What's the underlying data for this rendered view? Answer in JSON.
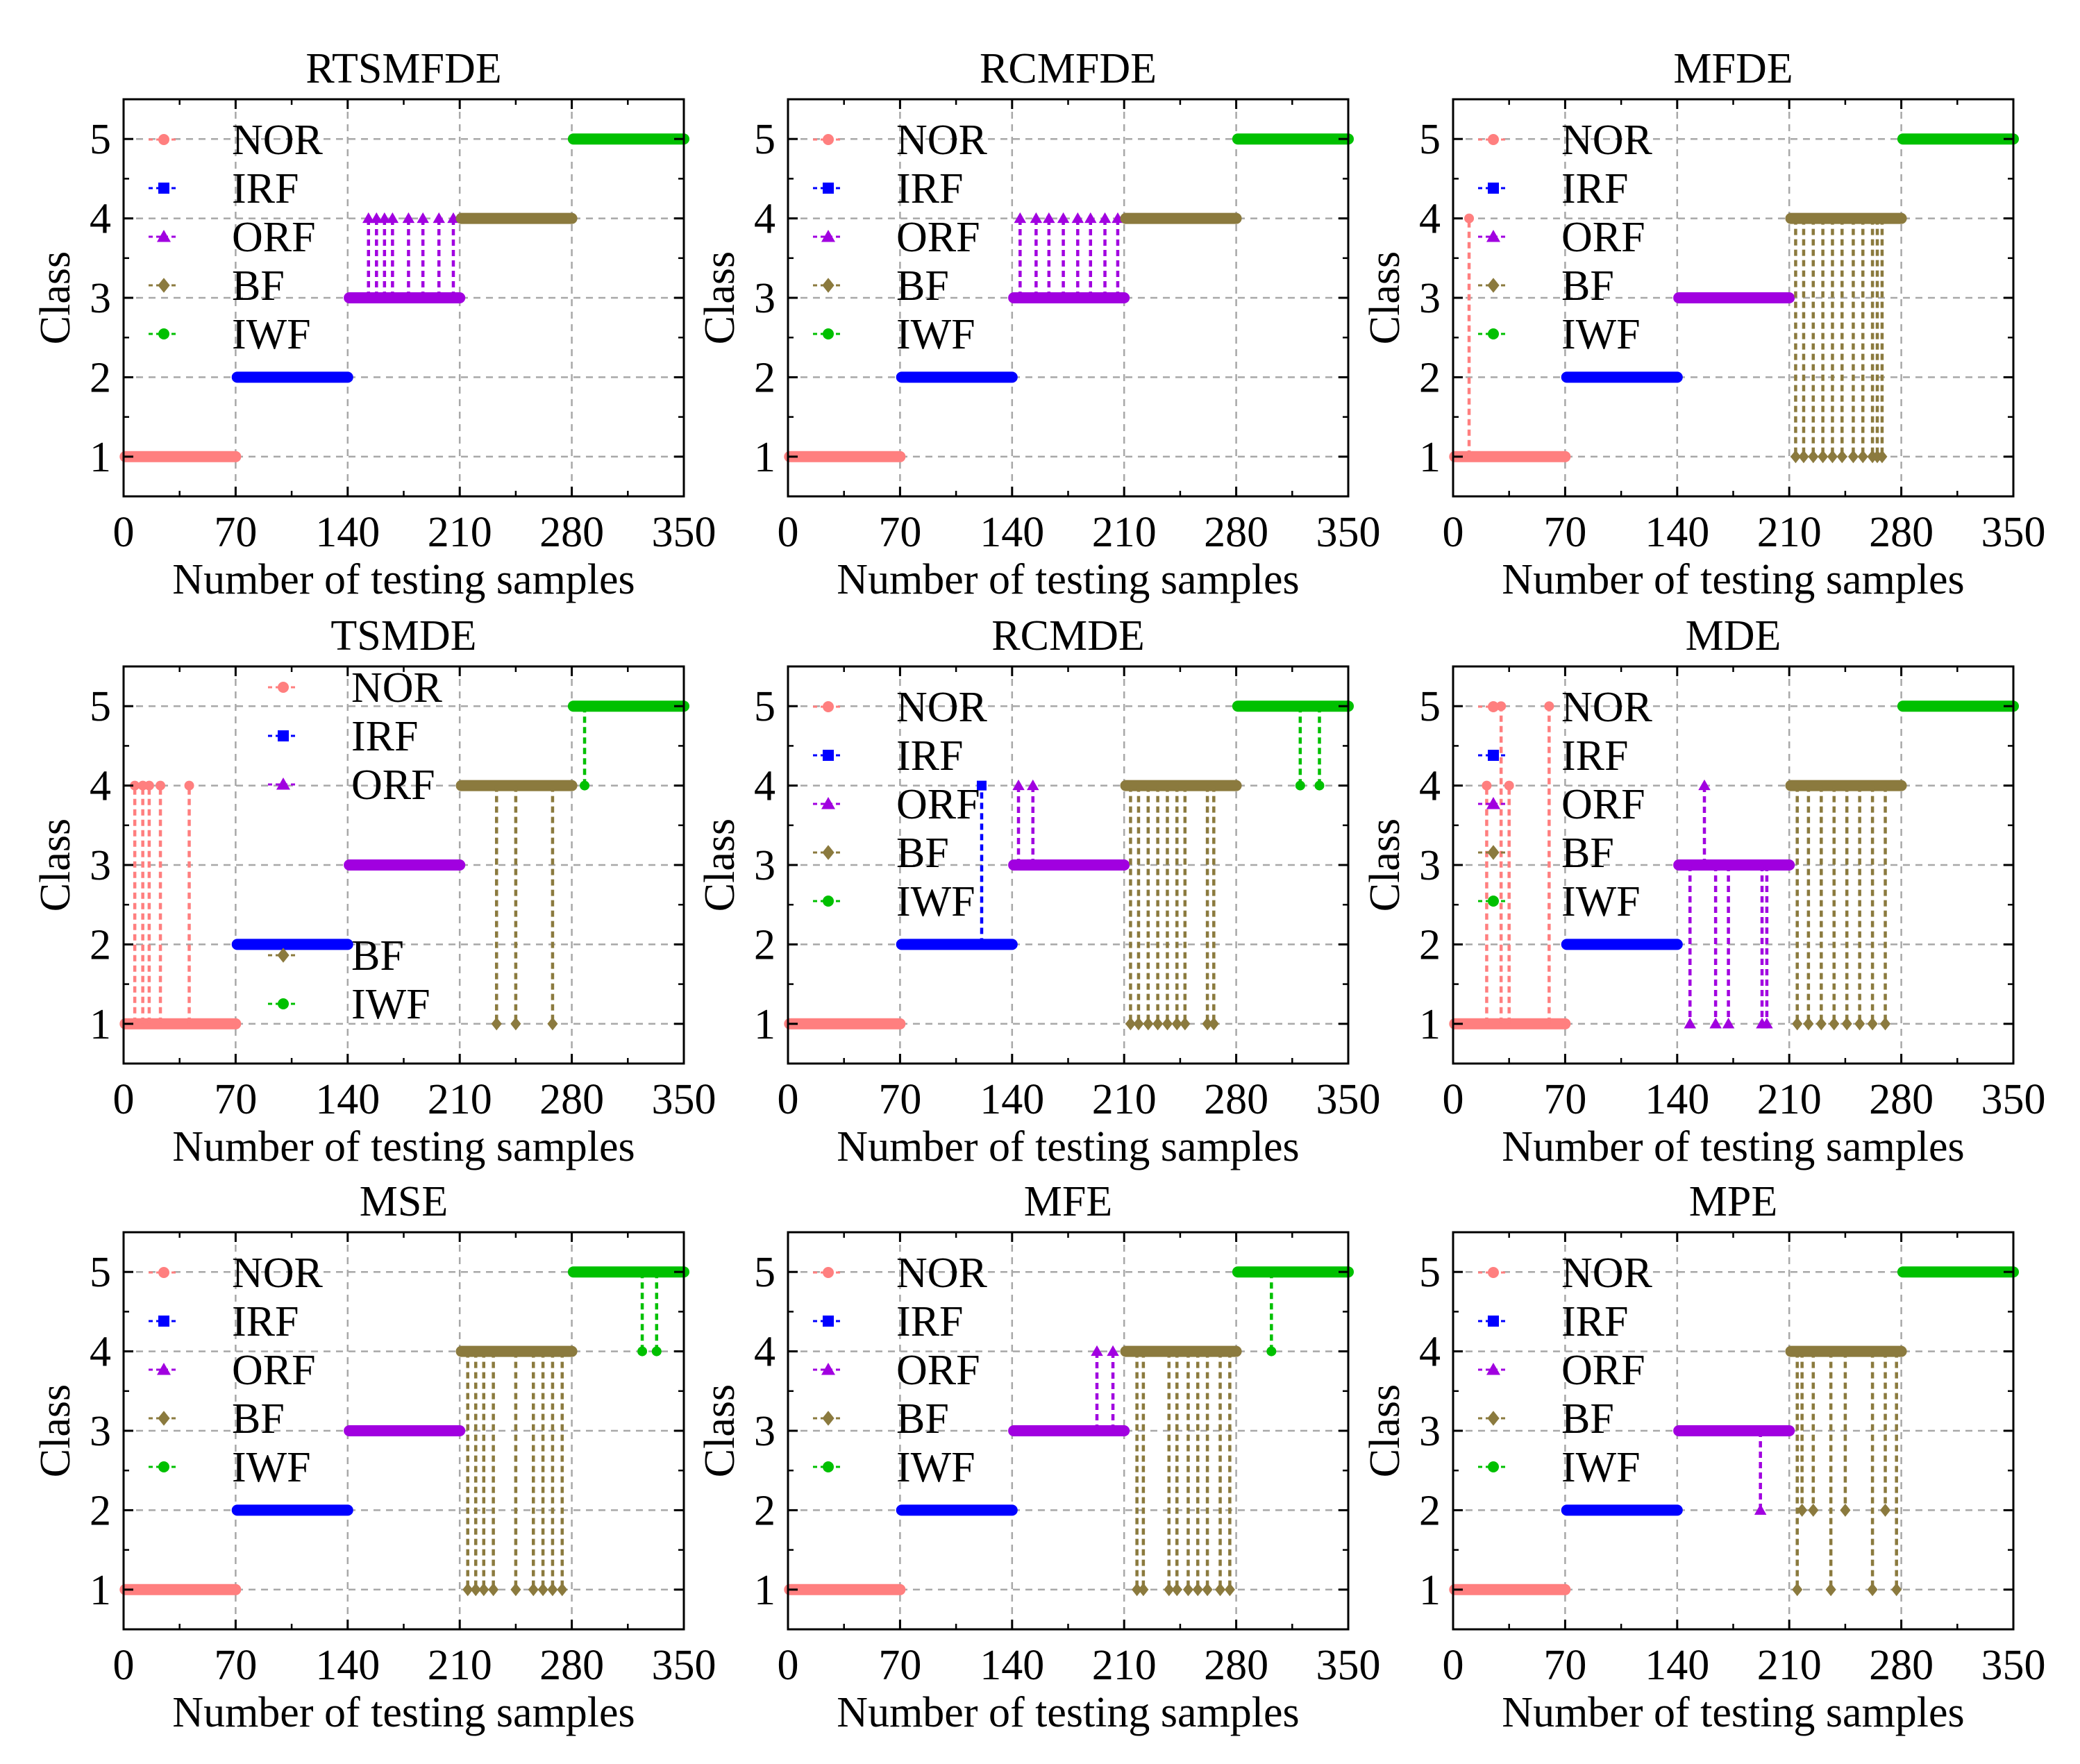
{
  "colors": {
    "NOR": "#ff7f7f",
    "IRF": "#0000ff",
    "ORF": "#a100e0",
    "BF": "#8b7a3e",
    "IWF": "#00c000"
  },
  "chart_data": [
    {
      "type": "scatter",
      "title": "RTSMFDE",
      "xlabel": "Number of testing samples",
      "ylabel": "Class",
      "xlim": [
        0,
        350
      ],
      "ylim": [
        0.5,
        5.5
      ],
      "xticks": [
        "0",
        "70",
        "140",
        "210",
        "280",
        "350"
      ],
      "yticks": [
        "1",
        "2",
        "3",
        "4",
        "5"
      ],
      "grid": true,
      "legend": {
        "position": "upper-left",
        "entries": [
          "NOR",
          "IRF",
          "ORF",
          "BF",
          "IWF"
        ]
      },
      "errors": {
        "NOR": [],
        "IRF": [],
        "ORF": [
          [
            153,
            4
          ],
          [
            158,
            4
          ],
          [
            163,
            4
          ],
          [
            168,
            4
          ],
          [
            178,
            4
          ],
          [
            187,
            4
          ],
          [
            197,
            4
          ],
          [
            206,
            4
          ]
        ],
        "BF": [],
        "IWF": []
      }
    },
    {
      "type": "scatter",
      "title": "RCMFDE",
      "xlabel": "Number of testing samples",
      "ylabel": "Class",
      "xlim": [
        0,
        350
      ],
      "ylim": [
        0.5,
        5.5
      ],
      "xticks": [
        "0",
        "70",
        "140",
        "210",
        "280",
        "350"
      ],
      "yticks": [
        "1",
        "2",
        "3",
        "4",
        "5"
      ],
      "grid": true,
      "legend": {
        "position": "upper-left",
        "entries": [
          "NOR",
          "IRF",
          "ORF",
          "BF",
          "IWF"
        ]
      },
      "errors": {
        "NOR": [],
        "IRF": [],
        "ORF": [
          [
            145,
            4
          ],
          [
            155,
            4
          ],
          [
            163,
            4
          ],
          [
            172,
            4
          ],
          [
            181,
            4
          ],
          [
            189,
            4
          ],
          [
            198,
            4
          ],
          [
            206,
            4
          ]
        ],
        "BF": [],
        "IWF": []
      }
    },
    {
      "type": "scatter",
      "title": "MFDE",
      "xlabel": "Number of testing samples",
      "ylabel": "Class",
      "xlim": [
        0,
        350
      ],
      "ylim": [
        0.5,
        5.5
      ],
      "xticks": [
        "0",
        "70",
        "140",
        "210",
        "280",
        "350"
      ],
      "yticks": [
        "1",
        "2",
        "3",
        "4",
        "5"
      ],
      "grid": true,
      "legend": {
        "position": "upper-left",
        "entries": [
          "NOR",
          "IRF",
          "ORF",
          "BF",
          "IWF"
        ]
      },
      "errors": {
        "NOR": [
          [
            10,
            4
          ]
        ],
        "IRF": [],
        "ORF": [],
        "BF": [
          [
            214,
            1
          ],
          [
            219,
            1
          ],
          [
            225,
            1
          ],
          [
            231,
            1
          ],
          [
            237,
            1
          ],
          [
            243,
            1
          ],
          [
            250,
            1
          ],
          [
            256,
            1
          ],
          [
            262,
            1
          ],
          [
            265,
            1
          ],
          [
            268,
            1
          ]
        ],
        "IWF": []
      }
    },
    {
      "type": "scatter",
      "title": "TSMDE",
      "xlabel": "Number of testing samples",
      "ylabel": "Class",
      "xlim": [
        0,
        350
      ],
      "ylim": [
        0.5,
        5.5
      ],
      "xticks": [
        "0",
        "70",
        "140",
        "210",
        "280",
        "350"
      ],
      "yticks": [
        "1",
        "2",
        "3",
        "4",
        "5"
      ],
      "grid": true,
      "legend": {
        "position": "split",
        "entries": [
          "NOR",
          "IRF",
          "ORF",
          "BF",
          "IWF"
        ]
      },
      "errors": {
        "NOR": [
          [
            7,
            4
          ],
          [
            12,
            4
          ],
          [
            16,
            4
          ],
          [
            23,
            4
          ],
          [
            41,
            4
          ]
        ],
        "IRF": [],
        "ORF": [],
        "BF": [
          [
            233,
            1
          ],
          [
            245,
            1
          ],
          [
            268,
            1
          ]
        ],
        "IWF": [
          [
            288,
            4
          ]
        ]
      }
    },
    {
      "type": "scatter",
      "title": "RCMDE",
      "xlabel": "Number of testing samples",
      "ylabel": "Class",
      "xlim": [
        0,
        350
      ],
      "ylim": [
        0.5,
        5.5
      ],
      "xticks": [
        "0",
        "70",
        "140",
        "210",
        "280",
        "350"
      ],
      "yticks": [
        "1",
        "2",
        "3",
        "4",
        "5"
      ],
      "grid": true,
      "legend": {
        "position": "upper-left",
        "entries": [
          "NOR",
          "IRF",
          "ORF",
          "BF",
          "IWF"
        ]
      },
      "errors": {
        "NOR": [],
        "IRF": [
          [
            121,
            4
          ]
        ],
        "ORF": [
          [
            144,
            4
          ],
          [
            153,
            4
          ]
        ],
        "BF": [
          [
            214,
            1
          ],
          [
            219,
            1
          ],
          [
            225,
            1
          ],
          [
            231,
            1
          ],
          [
            237,
            1
          ],
          [
            243,
            1
          ],
          [
            248,
            1
          ],
          [
            262,
            1
          ],
          [
            266,
            1
          ]
        ],
        "IWF": [
          [
            320,
            4
          ],
          [
            332,
            4
          ]
        ]
      }
    },
    {
      "type": "scatter",
      "title": "MDE",
      "xlabel": "Number of testing samples",
      "ylabel": "Class",
      "xlim": [
        0,
        350
      ],
      "ylim": [
        0.5,
        5.5
      ],
      "xticks": [
        "0",
        "70",
        "140",
        "210",
        "280",
        "350"
      ],
      "yticks": [
        "1",
        "2",
        "3",
        "4",
        "5"
      ],
      "grid": true,
      "legend": {
        "position": "upper-left",
        "entries": [
          "NOR",
          "IRF",
          "ORF",
          "BF",
          "IWF"
        ]
      },
      "errors": {
        "NOR": [
          [
            21,
            4
          ],
          [
            30,
            5
          ],
          [
            35,
            4
          ],
          [
            60,
            5
          ]
        ],
        "IRF": [],
        "ORF": [
          [
            148,
            1
          ],
          [
            157,
            4
          ],
          [
            164,
            1
          ],
          [
            172,
            1
          ],
          [
            193,
            1
          ],
          [
            196,
            1
          ]
        ],
        "BF": [
          [
            215,
            1
          ],
          [
            222,
            1
          ],
          [
            230,
            1
          ],
          [
            238,
            1
          ],
          [
            246,
            1
          ],
          [
            254,
            1
          ],
          [
            262,
            1
          ],
          [
            270,
            1
          ]
        ],
        "IWF": []
      }
    },
    {
      "type": "scatter",
      "title": "MSE",
      "xlabel": "Number of testing samples",
      "ylabel": "Class",
      "xlim": [
        0,
        350
      ],
      "ylim": [
        0.5,
        5.5
      ],
      "xticks": [
        "0",
        "70",
        "140",
        "210",
        "280",
        "350"
      ],
      "yticks": [
        "1",
        "2",
        "3",
        "4",
        "5"
      ],
      "grid": true,
      "legend": {
        "position": "upper-left",
        "entries": [
          "NOR",
          "IRF",
          "ORF",
          "BF",
          "IWF"
        ]
      },
      "errors": {
        "NOR": [],
        "IRF": [],
        "ORF": [],
        "BF": [
          [
            215,
            1
          ],
          [
            220,
            1
          ],
          [
            225,
            1
          ],
          [
            231,
            1
          ],
          [
            245,
            1
          ],
          [
            256,
            1
          ],
          [
            262,
            1
          ],
          [
            268,
            1
          ],
          [
            274,
            1
          ]
        ],
        "IWF": [
          [
            324,
            4
          ],
          [
            333,
            4
          ]
        ]
      }
    },
    {
      "type": "scatter",
      "title": "MFE",
      "xlabel": "Number of testing samples",
      "ylabel": "Class",
      "xlim": [
        0,
        350
      ],
      "ylim": [
        0.5,
        5.5
      ],
      "xticks": [
        "0",
        "70",
        "140",
        "210",
        "280",
        "350"
      ],
      "yticks": [
        "1",
        "2",
        "3",
        "4",
        "5"
      ],
      "grid": true,
      "legend": {
        "position": "upper-left",
        "entries": [
          "NOR",
          "IRF",
          "ORF",
          "BF",
          "IWF"
        ]
      },
      "errors": {
        "NOR": [],
        "IRF": [],
        "ORF": [
          [
            193,
            4
          ],
          [
            203,
            4
          ]
        ],
        "BF": [
          [
            218,
            1
          ],
          [
            222,
            1
          ],
          [
            238,
            1
          ],
          [
            243,
            1
          ],
          [
            250,
            1
          ],
          [
            256,
            1
          ],
          [
            262,
            1
          ],
          [
            270,
            1
          ],
          [
            276,
            1
          ]
        ],
        "IWF": [
          [
            302,
            4
          ]
        ]
      }
    },
    {
      "type": "scatter",
      "title": "MPE",
      "xlabel": "Number of testing samples",
      "ylabel": "Class",
      "xlim": [
        0,
        350
      ],
      "ylim": [
        0.5,
        5.5
      ],
      "xticks": [
        "0",
        "70",
        "140",
        "210",
        "280",
        "350"
      ],
      "yticks": [
        "1",
        "2",
        "3",
        "4",
        "5"
      ],
      "grid": true,
      "legend": {
        "position": "upper-left",
        "entries": [
          "NOR",
          "IRF",
          "ORF",
          "BF",
          "IWF"
        ]
      },
      "errors": {
        "NOR": [],
        "IRF": [],
        "ORF": [
          [
            192,
            2
          ]
        ],
        "BF": [
          [
            215,
            1
          ],
          [
            218,
            2
          ],
          [
            225,
            2
          ],
          [
            236,
            1
          ],
          [
            245,
            2
          ],
          [
            262,
            1
          ],
          [
            270,
            2
          ],
          [
            277,
            1
          ]
        ],
        "IWF": []
      }
    }
  ],
  "series_definition": {
    "classes": [
      "NOR",
      "IRF",
      "ORF",
      "BF",
      "IWF"
    ],
    "true_class": {
      "NOR": 1,
      "IRF": 2,
      "ORF": 3,
      "BF": 4,
      "IWF": 5
    },
    "sample_ranges": {
      "NOR": [
        1,
        70
      ],
      "IRF": [
        71,
        140
      ],
      "ORF": [
        141,
        210
      ],
      "BF": [
        211,
        280
      ],
      "IWF": [
        281,
        350
      ]
    },
    "markers": {
      "NOR": "circle",
      "IRF": "square",
      "ORF": "triangle",
      "BF": "diamond",
      "IWF": "circle"
    }
  }
}
